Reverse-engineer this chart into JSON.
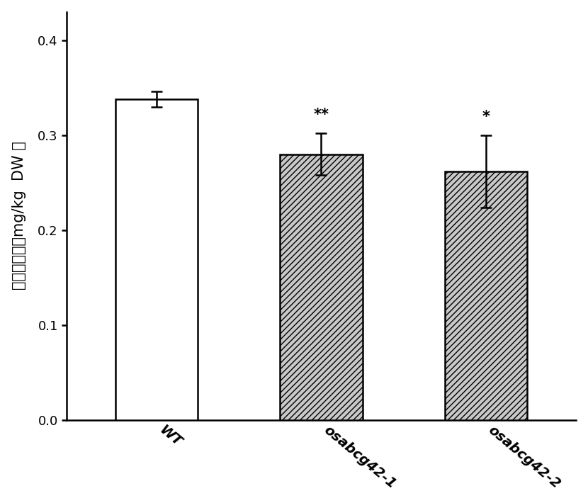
{
  "categories": [
    "WT",
    "osabcg42-1",
    "osabcg42-2"
  ],
  "values": [
    0.338,
    0.28,
    0.262
  ],
  "errors": [
    0.008,
    0.022,
    0.038
  ],
  "bar_colors": [
    "#ffffff",
    "#c8c8c8",
    "#c8c8c8"
  ],
  "bar_edgecolor": "#000000",
  "hatch_patterns": [
    "",
    "////",
    "////"
  ],
  "ylabel": "糙米镉含量（mg/kg  DW ）",
  "ylim": [
    0,
    0.43
  ],
  "yticks": [
    0.0,
    0.1,
    0.2,
    0.3,
    0.4
  ],
  "significance": [
    "",
    "**",
    "*"
  ],
  "sig_fontsize": 15,
  "ylabel_fontsize": 15,
  "tick_fontsize": 13,
  "xtick_fontsize": 14,
  "bar_width": 0.5,
  "figsize": [
    8.3,
    7.1
  ],
  "dpi": 100,
  "background_color": "#ffffff",
  "linewidth": 1.8,
  "capsize": 6,
  "error_linewidth": 1.8,
  "xtick_rotation": -40,
  "xtick_ha": "left"
}
